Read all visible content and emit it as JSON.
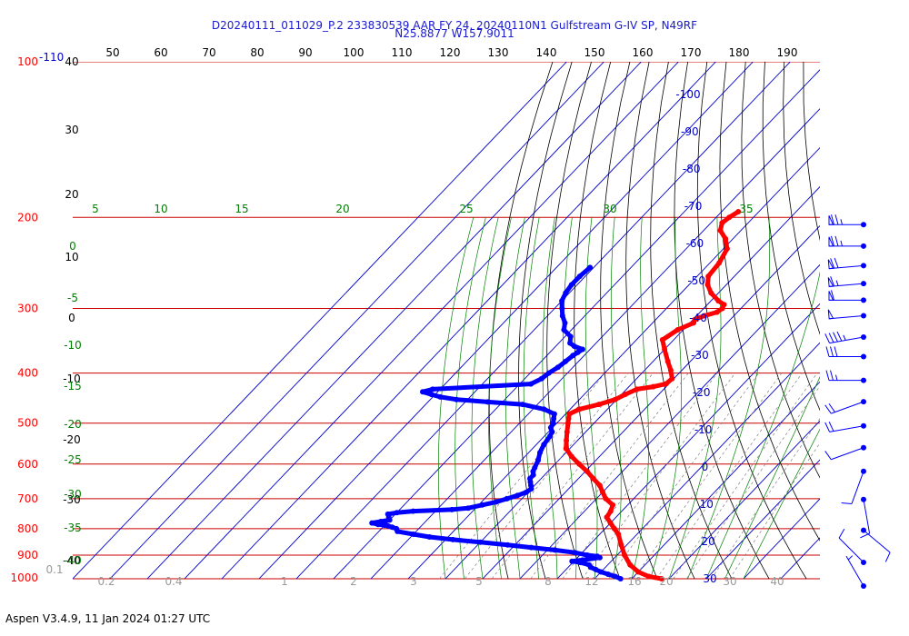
{
  "title_line1": "D20240111_011029_P.2 233830539 AAR FY 24, 20240110N1 Gulfstream G-IV SP, N49RF",
  "title_line2": "N25.8877 W157.9011",
  "footer": "Aspen V3.4.9, 11 Jan 2024  01:27 UTC",
  "colors": {
    "temperature": "#ff0000",
    "dewpoint": "#0000ff",
    "isobar": "#cc0000",
    "isotherm": "#0000cc",
    "dry_adiabat": "#000000",
    "moist_adiabat": "#008000",
    "mixing_ratio": "#808080"
  },
  "chart_data": {
    "type": "skew-t log-p sounding",
    "pressure_labels": [
      {
        "p": 100,
        "text": "100"
      },
      {
        "p": 200,
        "text": "200"
      },
      {
        "p": 300,
        "text": "300"
      },
      {
        "p": 400,
        "text": "400"
      },
      {
        "p": 500,
        "text": "500"
      },
      {
        "p": 600,
        "text": "600"
      },
      {
        "p": 700,
        "text": "700"
      },
      {
        "p": 800,
        "text": "800"
      },
      {
        "p": 900,
        "text": "900"
      },
      {
        "p": 1000,
        "text": "1000"
      }
    ],
    "isobar_pressures": [
      100,
      200,
      300,
      400,
      500,
      600,
      700,
      800,
      900,
      1000
    ],
    "extra_top_label": "-110",
    "top_scale": [
      "50",
      "60",
      "70",
      "80",
      "90",
      "100",
      "110",
      "120",
      "130",
      "140",
      "150",
      "160",
      "170",
      "180",
      "190"
    ],
    "isotherm_labels": [
      {
        "t": -100,
        "text": "-100"
      },
      {
        "t": -90,
        "text": "-90"
      },
      {
        "t": -80,
        "text": "-80"
      },
      {
        "t": -70,
        "text": "-70"
      },
      {
        "t": -60,
        "text": "-60"
      },
      {
        "t": -50,
        "text": "-50"
      },
      {
        "t": -40,
        "text": "-40"
      },
      {
        "t": -30,
        "text": "-30"
      },
      {
        "t": -20,
        "text": "-20"
      },
      {
        "t": -10,
        "text": "-10"
      },
      {
        "t": 0,
        "text": "0"
      },
      {
        "t": 10,
        "text": "10"
      },
      {
        "t": 20,
        "text": "20"
      },
      {
        "t": 30,
        "text": "30"
      }
    ],
    "dry_adiabat_labels": [
      "40",
      "30",
      "20",
      "10",
      "0",
      "-10",
      "-20",
      "-30",
      "-40"
    ],
    "moist_adiabat_labels": [
      "5",
      "10",
      "15",
      "20",
      "25",
      "30",
      "35"
    ],
    "moist_left_labels": [
      "0",
      "-5",
      "-10",
      "-15",
      "-20",
      "-25",
      "-30",
      "-35",
      "-40"
    ],
    "mixing_ratio_labels": [
      "0.1",
      "0.2",
      "0.4",
      "1",
      "2",
      "3",
      "5",
      "8",
      "12",
      "16",
      "20",
      "30",
      "40"
    ],
    "temperature": [
      [
        195,
        -55.5
      ],
      [
        200,
        -56.5
      ],
      [
        205,
        -57
      ],
      [
        212,
        -55.5
      ],
      [
        220,
        -52
      ],
      [
        230,
        -49
      ],
      [
        245,
        -47.5
      ],
      [
        260,
        -47
      ],
      [
        270,
        -45
      ],
      [
        280,
        -42
      ],
      [
        290,
        -38
      ],
      [
        295,
        -35.5
      ],
      [
        300,
        -35
      ],
      [
        305,
        -35.5
      ],
      [
        310,
        -38
      ],
      [
        315,
        -39.5
      ],
      [
        320,
        -39
      ],
      [
        330,
        -41.5
      ],
      [
        345,
        -43
      ],
      [
        360,
        -40
      ],
      [
        380,
        -36
      ],
      [
        395,
        -33
      ],
      [
        410,
        -30.5
      ],
      [
        420,
        -30.8
      ],
      [
        425,
        -33.5
      ],
      [
        430,
        -37.2
      ],
      [
        440,
        -39
      ],
      [
        450,
        -40.4
      ],
      [
        460,
        -43.5
      ],
      [
        470,
        -47.5
      ],
      [
        480,
        -49
      ],
      [
        490,
        -48
      ],
      [
        500,
        -47
      ],
      [
        520,
        -45
      ],
      [
        540,
        -43
      ],
      [
        560,
        -41
      ],
      [
        580,
        -37.5
      ],
      [
        600,
        -33.5
      ],
      [
        620,
        -29.5
      ],
      [
        640,
        -26
      ],
      [
        660,
        -22.5
      ],
      [
        680,
        -20
      ],
      [
        700,
        -17.5
      ],
      [
        720,
        -14
      ],
      [
        740,
        -13
      ],
      [
        760,
        -12.5
      ],
      [
        780,
        -10
      ],
      [
        800,
        -7.5
      ],
      [
        820,
        -5
      ],
      [
        860,
        -1.5
      ],
      [
        900,
        2
      ],
      [
        940,
        6
      ],
      [
        970,
        10
      ],
      [
        990,
        14
      ],
      [
        1000,
        18
      ]
    ],
    "dewpoint": [
      [
        250,
        -81
      ],
      [
        260,
        -81.5
      ],
      [
        270,
        -81.5
      ],
      [
        280,
        -81
      ],
      [
        290,
        -80
      ],
      [
        300,
        -78
      ],
      [
        310,
        -76
      ],
      [
        320,
        -73.5
      ],
      [
        330,
        -72
      ],
      [
        340,
        -68.5
      ],
      [
        350,
        -67
      ],
      [
        355,
        -65
      ],
      [
        360,
        -62
      ],
      [
        365,
        -62.5
      ],
      [
        370,
        -63
      ],
      [
        380,
        -63.5
      ],
      [
        390,
        -64
      ],
      [
        400,
        -65
      ],
      [
        410,
        -65.5
      ],
      [
        420,
        -67
      ],
      [
        430,
        -92
      ],
      [
        435,
        -94
      ],
      [
        440,
        -91
      ],
      [
        445,
        -88
      ],
      [
        450,
        -83
      ],
      [
        455,
        -74
      ],
      [
        460,
        -64
      ],
      [
        470,
        -57
      ],
      [
        480,
        -53
      ],
      [
        490,
        -52
      ],
      [
        500,
        -51
      ],
      [
        510,
        -50.5
      ],
      [
        520,
        -49
      ],
      [
        530,
        -48.5
      ],
      [
        550,
        -48
      ],
      [
        570,
        -47
      ],
      [
        590,
        -45.5
      ],
      [
        610,
        -44.5
      ],
      [
        620,
        -44
      ],
      [
        630,
        -43
      ],
      [
        640,
        -43
      ],
      [
        650,
        -42
      ],
      [
        660,
        -41
      ],
      [
        670,
        -40
      ],
      [
        680,
        -40.5
      ],
      [
        690,
        -42
      ],
      [
        700,
        -44
      ],
      [
        710,
        -46
      ],
      [
        720,
        -49
      ],
      [
        730,
        -52
      ],
      [
        735,
        -56
      ],
      [
        740,
        -66
      ],
      [
        745,
        -70
      ],
      [
        750,
        -72
      ],
      [
        760,
        -71
      ],
      [
        770,
        -70
      ],
      [
        775,
        -72
      ],
      [
        780,
        -74
      ],
      [
        785,
        -72
      ],
      [
        788,
        -70
      ],
      [
        790,
        -69
      ],
      [
        795,
        -67.5
      ],
      [
        800,
        -66
      ],
      [
        810,
        -65
      ],
      [
        820,
        -60
      ],
      [
        830,
        -55
      ],
      [
        840,
        -48
      ],
      [
        850,
        -40
      ],
      [
        860,
        -32
      ],
      [
        870,
        -25
      ],
      [
        880,
        -18
      ],
      [
        890,
        -12
      ],
      [
        900,
        -8
      ],
      [
        905,
        -5
      ],
      [
        910,
        -4
      ],
      [
        920,
        -8
      ],
      [
        925,
        -10.5
      ],
      [
        930,
        -8
      ],
      [
        940,
        -5
      ],
      [
        950,
        -4
      ],
      [
        960,
        -2
      ],
      [
        970,
        0
      ],
      [
        980,
        2.5
      ],
      [
        990,
        5
      ],
      [
        1000,
        7
      ]
    ],
    "wind_barbs": [
      {
        "p": 200,
        "dir": 270,
        "kt": 75
      },
      {
        "p": 220,
        "dir": 270,
        "kt": 75
      },
      {
        "p": 240,
        "dir": 265,
        "kt": 70
      },
      {
        "p": 260,
        "dir": 265,
        "kt": 65
      },
      {
        "p": 280,
        "dir": 270,
        "kt": 60
      },
      {
        "p": 300,
        "dir": 265,
        "kt": 50
      },
      {
        "p": 330,
        "dir": 260,
        "kt": 45
      },
      {
        "p": 360,
        "dir": 270,
        "kt": 30
      },
      {
        "p": 400,
        "dir": 270,
        "kt": 25
      },
      {
        "p": 440,
        "dir": 250,
        "kt": 20
      },
      {
        "p": 490,
        "dir": 260,
        "kt": 20
      },
      {
        "p": 540,
        "dir": 250,
        "kt": 10
      },
      {
        "p": 600,
        "dir": 200,
        "kt": 10
      },
      {
        "p": 680,
        "dir": 170,
        "kt": 10
      },
      {
        "p": 780,
        "dir": 130,
        "kt": 10
      },
      {
        "p": 900,
        "dir": 315,
        "kt": 10
      },
      {
        "p": 1000,
        "dir": 330,
        "kt": 5
      }
    ]
  }
}
